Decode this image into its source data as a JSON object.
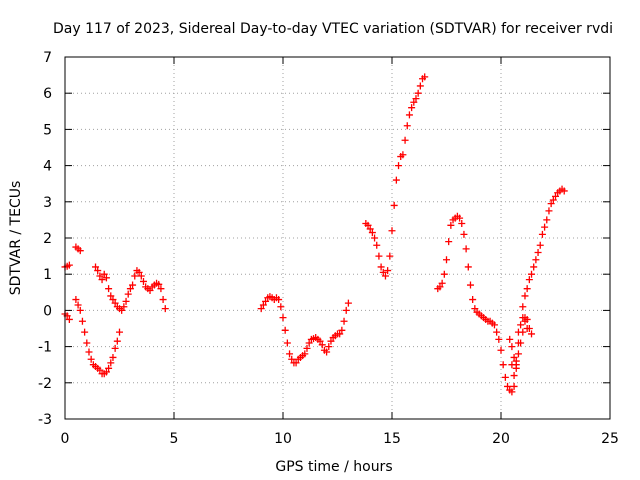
{
  "chart_data": {
    "type": "scatter",
    "title": "Day 117 of 2023, Sidereal Day-to-day VTEC variation (SDTVAR) for receiver rvdi",
    "xlabel": "GPS time / hours",
    "ylabel": "SDTVAR / TECUs",
    "xlim": [
      0,
      25
    ],
    "ylim": [
      -3,
      7
    ],
    "xticks": [
      "0",
      "5",
      "10",
      "15",
      "20",
      "25"
    ],
    "yticks": [
      "-3",
      "-2",
      "-1",
      "0",
      "1",
      "2",
      "3",
      "4",
      "5",
      "6",
      "7"
    ],
    "grid": true,
    "marker": "plus",
    "color": "#ff0000",
    "series": [
      {
        "points": [
          [
            0.0,
            -0.1
          ],
          [
            0.1,
            -0.15
          ],
          [
            0.2,
            -0.25
          ],
          [
            0.0,
            1.2
          ],
          [
            0.1,
            1.22
          ],
          [
            0.2,
            1.25
          ],
          [
            0.5,
            1.75
          ],
          [
            0.6,
            1.7
          ],
          [
            0.7,
            1.65
          ],
          [
            0.5,
            0.3
          ],
          [
            0.6,
            0.15
          ],
          [
            0.7,
            0.0
          ],
          [
            0.8,
            -0.3
          ],
          [
            0.9,
            -0.6
          ],
          [
            1.0,
            -0.9
          ],
          [
            1.1,
            -1.15
          ],
          [
            1.2,
            -1.35
          ],
          [
            1.3,
            -1.5
          ],
          [
            1.4,
            -1.55
          ],
          [
            1.5,
            -1.6
          ],
          [
            1.6,
            -1.65
          ],
          [
            1.7,
            -1.75
          ],
          [
            1.8,
            -1.75
          ],
          [
            1.9,
            -1.7
          ],
          [
            2.0,
            -1.6
          ],
          [
            2.1,
            -1.45
          ],
          [
            2.2,
            -1.3
          ],
          [
            2.3,
            -1.05
          ],
          [
            2.4,
            -0.85
          ],
          [
            2.5,
            -0.6
          ],
          [
            1.4,
            1.2
          ],
          [
            1.5,
            1.1
          ],
          [
            1.6,
            0.95
          ],
          [
            1.7,
            0.85
          ],
          [
            1.8,
            1.0
          ],
          [
            1.9,
            0.9
          ],
          [
            2.0,
            0.6
          ],
          [
            2.1,
            0.4
          ],
          [
            2.2,
            0.3
          ],
          [
            2.3,
            0.2
          ],
          [
            2.4,
            0.1
          ],
          [
            2.5,
            0.05
          ],
          [
            2.6,
            0.0
          ],
          [
            2.7,
            0.1
          ],
          [
            2.8,
            0.25
          ],
          [
            2.9,
            0.45
          ],
          [
            3.0,
            0.6
          ],
          [
            3.1,
            0.7
          ],
          [
            3.2,
            0.95
          ],
          [
            3.3,
            1.1
          ],
          [
            3.4,
            1.05
          ],
          [
            3.5,
            0.95
          ],
          [
            3.6,
            0.8
          ],
          [
            3.7,
            0.65
          ],
          [
            3.8,
            0.6
          ],
          [
            3.9,
            0.55
          ],
          [
            4.0,
            0.65
          ],
          [
            4.1,
            0.7
          ],
          [
            4.2,
            0.75
          ],
          [
            4.3,
            0.72
          ],
          [
            4.4,
            0.6
          ],
          [
            4.5,
            0.3
          ],
          [
            4.6,
            0.05
          ],
          [
            9.0,
            0.05
          ],
          [
            9.1,
            0.15
          ],
          [
            9.2,
            0.25
          ],
          [
            9.3,
            0.35
          ],
          [
            9.4,
            0.38
          ],
          [
            9.5,
            0.35
          ],
          [
            9.6,
            0.3
          ],
          [
            9.7,
            0.35
          ],
          [
            9.8,
            0.3
          ],
          [
            9.9,
            0.1
          ],
          [
            10.0,
            -0.2
          ],
          [
            10.1,
            -0.55
          ],
          [
            10.2,
            -0.9
          ],
          [
            10.3,
            -1.2
          ],
          [
            10.4,
            -1.35
          ],
          [
            10.5,
            -1.45
          ],
          [
            10.6,
            -1.45
          ],
          [
            10.7,
            -1.35
          ],
          [
            10.8,
            -1.3
          ],
          [
            10.9,
            -1.25
          ],
          [
            11.0,
            -1.2
          ],
          [
            11.1,
            -1.05
          ],
          [
            11.2,
            -0.9
          ],
          [
            11.3,
            -0.8
          ],
          [
            11.4,
            -0.78
          ],
          [
            11.5,
            -0.75
          ],
          [
            11.6,
            -0.8
          ],
          [
            11.7,
            -0.85
          ],
          [
            11.8,
            -0.95
          ],
          [
            11.9,
            -1.1
          ],
          [
            12.0,
            -1.15
          ],
          [
            12.1,
            -1.0
          ],
          [
            12.2,
            -0.85
          ],
          [
            12.3,
            -0.75
          ],
          [
            12.4,
            -0.7
          ],
          [
            12.5,
            -0.65
          ],
          [
            12.6,
            -0.65
          ],
          [
            12.7,
            -0.55
          ],
          [
            12.8,
            -0.3
          ],
          [
            12.9,
            0.0
          ],
          [
            13.0,
            0.2
          ],
          [
            13.8,
            2.4
          ],
          [
            13.9,
            2.35
          ],
          [
            14.0,
            2.25
          ],
          [
            14.1,
            2.15
          ],
          [
            14.2,
            2.0
          ],
          [
            14.3,
            1.8
          ],
          [
            14.4,
            1.5
          ],
          [
            14.5,
            1.2
          ],
          [
            14.6,
            1.05
          ],
          [
            14.7,
            0.95
          ],
          [
            14.8,
            1.1
          ],
          [
            14.9,
            1.5
          ],
          [
            15.0,
            2.2
          ],
          [
            15.1,
            2.9
          ],
          [
            15.2,
            3.6
          ],
          [
            15.3,
            4.0
          ],
          [
            15.4,
            4.25
          ],
          [
            15.5,
            4.3
          ],
          [
            15.6,
            4.7
          ],
          [
            15.7,
            5.1
          ],
          [
            15.8,
            5.4
          ],
          [
            15.9,
            5.6
          ],
          [
            16.0,
            5.75
          ],
          [
            16.1,
            5.85
          ],
          [
            16.2,
            6.0
          ],
          [
            16.3,
            6.2
          ],
          [
            16.4,
            6.4
          ],
          [
            16.5,
            6.45
          ],
          [
            17.1,
            0.6
          ],
          [
            17.2,
            0.65
          ],
          [
            17.3,
            0.75
          ],
          [
            17.4,
            1.0
          ],
          [
            17.5,
            1.4
          ],
          [
            17.6,
            1.9
          ],
          [
            17.7,
            2.35
          ],
          [
            17.8,
            2.5
          ],
          [
            17.9,
            2.55
          ],
          [
            18.0,
            2.6
          ],
          [
            18.1,
            2.55
          ],
          [
            18.2,
            2.4
          ],
          [
            18.3,
            2.1
          ],
          [
            18.4,
            1.7
          ],
          [
            18.5,
            1.2
          ],
          [
            18.6,
            0.7
          ],
          [
            18.7,
            0.3
          ],
          [
            18.8,
            0.05
          ],
          [
            18.9,
            -0.05
          ],
          [
            19.0,
            -0.1
          ],
          [
            19.1,
            -0.15
          ],
          [
            19.2,
            -0.2
          ],
          [
            19.3,
            -0.25
          ],
          [
            19.4,
            -0.3
          ],
          [
            19.5,
            -0.3
          ],
          [
            19.6,
            -0.35
          ],
          [
            19.7,
            -0.4
          ],
          [
            19.8,
            -0.6
          ],
          [
            19.9,
            -0.8
          ],
          [
            20.0,
            -1.1
          ],
          [
            20.1,
            -1.5
          ],
          [
            20.2,
            -1.85
          ],
          [
            20.3,
            -2.1
          ],
          [
            20.4,
            -2.2
          ],
          [
            20.5,
            -2.25
          ],
          [
            20.6,
            -2.1
          ],
          [
            20.7,
            -1.6
          ],
          [
            20.8,
            -0.9
          ],
          [
            20.9,
            -0.4
          ],
          [
            21.0,
            -0.2
          ],
          [
            20.4,
            -0.8
          ],
          [
            20.5,
            -1.0
          ],
          [
            20.6,
            -1.3
          ],
          [
            20.7,
            -1.5
          ],
          [
            20.8,
            -1.2
          ],
          [
            20.9,
            -0.9
          ],
          [
            21.0,
            -0.6
          ],
          [
            21.1,
            -0.3
          ],
          [
            21.2,
            -0.5
          ],
          [
            20.5,
            -1.5
          ],
          [
            20.6,
            -1.8
          ],
          [
            20.7,
            -1.4
          ],
          [
            20.8,
            -0.6
          ],
          [
            21.0,
            0.1
          ],
          [
            21.1,
            0.4
          ],
          [
            21.2,
            0.6
          ],
          [
            21.3,
            0.85
          ],
          [
            21.4,
            1.0
          ],
          [
            21.5,
            1.2
          ],
          [
            21.6,
            1.4
          ],
          [
            21.7,
            1.6
          ],
          [
            21.8,
            1.8
          ],
          [
            21.9,
            2.1
          ],
          [
            22.0,
            2.3
          ],
          [
            22.1,
            2.5
          ],
          [
            22.2,
            2.75
          ],
          [
            22.3,
            2.95
          ],
          [
            22.4,
            3.05
          ],
          [
            22.5,
            3.15
          ],
          [
            22.6,
            3.25
          ],
          [
            22.7,
            3.3
          ],
          [
            22.8,
            3.35
          ],
          [
            22.9,
            3.3
          ],
          [
            21.1,
            -0.2
          ],
          [
            21.2,
            -0.25
          ],
          [
            21.3,
            -0.5
          ],
          [
            21.4,
            -0.65
          ]
        ]
      }
    ]
  }
}
